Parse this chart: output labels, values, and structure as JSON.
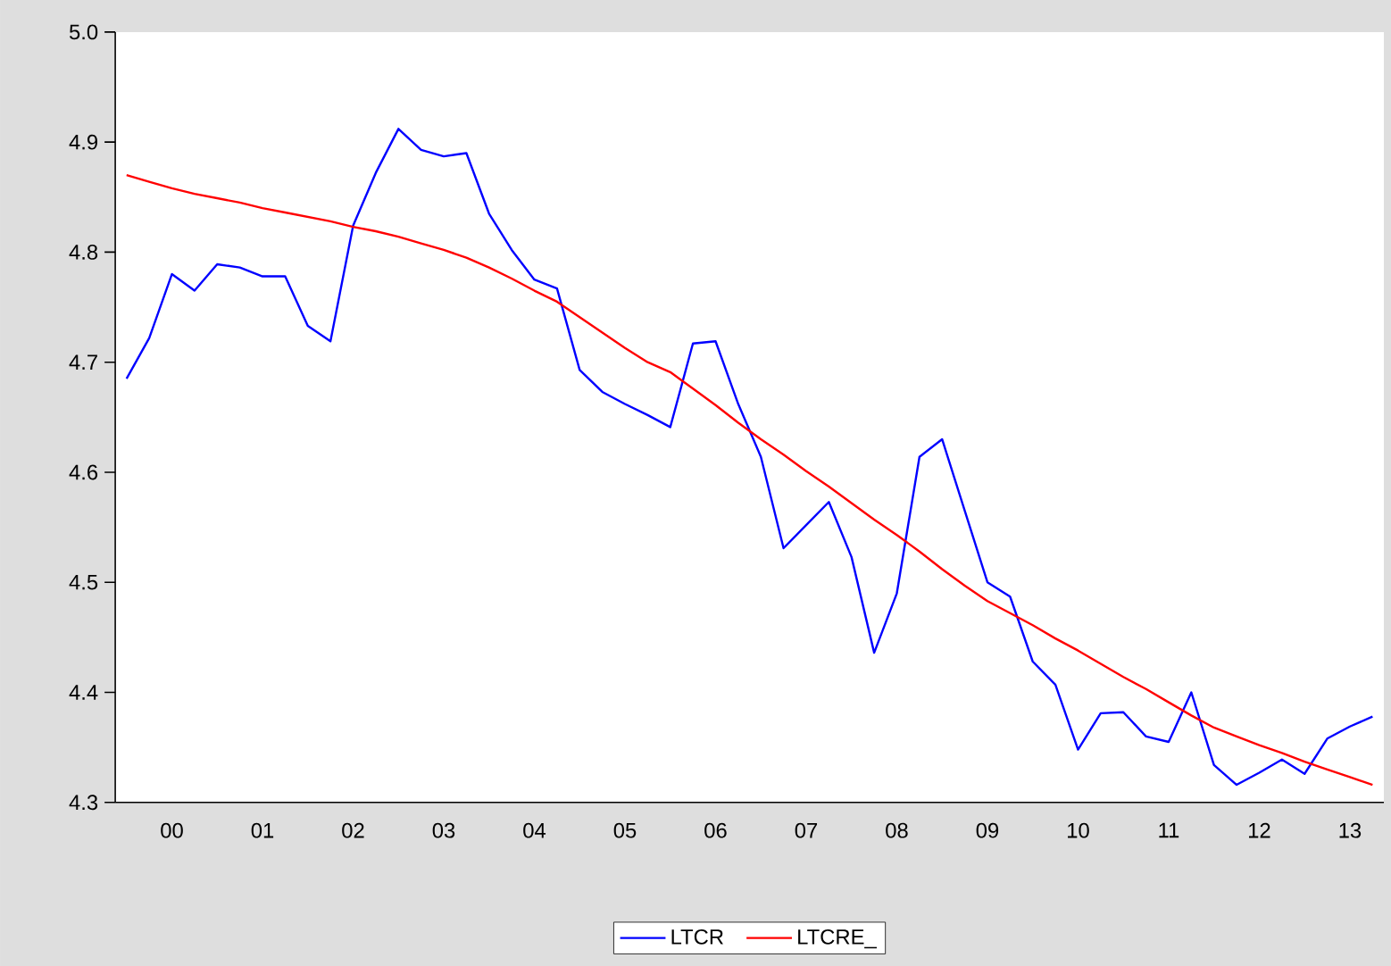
{
  "chart_data": {
    "type": "line",
    "categories": [
      null,
      null,
      "00",
      null,
      null,
      null,
      "01",
      null,
      null,
      null,
      "02",
      null,
      null,
      null,
      "03",
      null,
      null,
      null,
      "04",
      null,
      null,
      null,
      "05",
      null,
      null,
      null,
      "06",
      null,
      null,
      null,
      "07",
      null,
      null,
      null,
      "08",
      null,
      null,
      null,
      "09",
      null,
      null,
      null,
      "10",
      null,
      null,
      null,
      "11",
      null,
      null,
      null,
      "12",
      null,
      null,
      null,
      "13",
      null
    ],
    "series": [
      {
        "name": "LTCR",
        "color": "#0000ff",
        "values": [
          4.685,
          4.722,
          4.78,
          4.765,
          4.789,
          4.786,
          4.778,
          4.778,
          4.733,
          4.719,
          4.824,
          4.872,
          4.912,
          4.893,
          4.887,
          4.89,
          4.835,
          4.802,
          4.775,
          4.767,
          4.693,
          4.673,
          4.662,
          4.652,
          4.641,
          4.717,
          4.719,
          4.662,
          4.614,
          4.531,
          4.552,
          4.573,
          4.523,
          4.436,
          4.49,
          4.614,
          4.63,
          4.565,
          4.5,
          4.487,
          4.428,
          4.407,
          4.348,
          4.381,
          4.382,
          4.36,
          4.355,
          4.4,
          4.334,
          4.316,
          4.327,
          4.339,
          4.326,
          4.358,
          4.369,
          4.378
        ]
      },
      {
        "name": "LTCRE_",
        "color": "#ff0000",
        "values": [
          4.87,
          4.864,
          4.858,
          4.853,
          4.849,
          4.845,
          4.84,
          4.836,
          4.832,
          4.828,
          4.823,
          4.819,
          4.814,
          4.808,
          4.802,
          4.795,
          4.786,
          4.776,
          4.765,
          4.755,
          4.741,
          4.727,
          4.713,
          4.7,
          4.691,
          4.676,
          4.661,
          4.645,
          4.63,
          4.616,
          4.601,
          4.587,
          4.572,
          4.557,
          4.543,
          4.528,
          4.512,
          4.497,
          4.483,
          4.472,
          4.461,
          4.449,
          4.438,
          4.426,
          4.414,
          4.403,
          4.391,
          4.379,
          4.368,
          4.36,
          4.352,
          4.345,
          4.337,
          4.33,
          4.323,
          4.316
        ]
      }
    ],
    "ylim": [
      4.3,
      5.0
    ],
    "yticks": [
      {
        "value": 4.3,
        "label": "4.3"
      },
      {
        "value": 4.4,
        "label": "4.4"
      },
      {
        "value": 4.5,
        "label": "4.5"
      },
      {
        "value": 4.6,
        "label": "4.6"
      },
      {
        "value": 4.7,
        "label": "4.7"
      },
      {
        "value": 4.8,
        "label": "4.8"
      },
      {
        "value": 4.9,
        "label": "4.9"
      },
      {
        "value": 5.0,
        "label": "5.0"
      }
    ],
    "grid": false,
    "legend": "bottom",
    "marker": "none",
    "line_style": "solid"
  }
}
